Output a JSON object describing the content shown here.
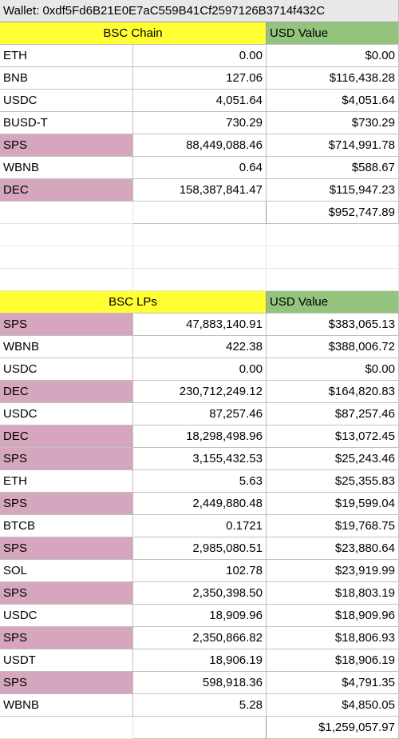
{
  "wallet": "Wallet: 0xdf5Fd6B21E0E7aC559B41Cf2597126B3714f432C",
  "bsc_chain": {
    "header": "BSC Chain",
    "usd_header": "USD Value",
    "rows": [
      {
        "token": "ETH",
        "amount": "0.00",
        "usd": "$0.00",
        "highlight": false
      },
      {
        "token": "BNB",
        "amount": "127.06",
        "usd": "$116,438.28",
        "highlight": false
      },
      {
        "token": "USDC",
        "amount": "4,051.64",
        "usd": "$4,051.64",
        "highlight": false
      },
      {
        "token": "BUSD-T",
        "amount": "730.29",
        "usd": "$730.29",
        "highlight": false
      },
      {
        "token": "SPS",
        "amount": "88,449,088.46",
        "usd": "$714,991.78",
        "highlight": true
      },
      {
        "token": "WBNB",
        "amount": "0.64",
        "usd": "$588.67",
        "highlight": false
      },
      {
        "token": "DEC",
        "amount": "158,387,841.47",
        "usd": "$115,947.23",
        "highlight": true
      }
    ],
    "total": "$952,747.89"
  },
  "bsc_lps": {
    "header": "BSC LPs",
    "usd_header": "USD Value",
    "rows": [
      {
        "token": "SPS",
        "amount": "47,883,140.91",
        "usd": "$383,065.13",
        "highlight": true
      },
      {
        "token": "WBNB",
        "amount": "422.38",
        "usd": "$388,006.72",
        "highlight": false
      },
      {
        "token": "USDC",
        "amount": "0.00",
        "usd": "$0.00",
        "highlight": false
      },
      {
        "token": "DEC",
        "amount": "230,712,249.12",
        "usd": "$164,820.83",
        "highlight": true
      },
      {
        "token": "USDC",
        "amount": "87,257.46",
        "usd": "$87,257.46",
        "highlight": false
      },
      {
        "token": "DEC",
        "amount": "18,298,498.96",
        "usd": "$13,072.45",
        "highlight": true
      },
      {
        "token": "SPS",
        "amount": "3,155,432.53",
        "usd": "$25,243.46",
        "highlight": true
      },
      {
        "token": "ETH",
        "amount": "5.63",
        "usd": "$25,355.83",
        "highlight": false
      },
      {
        "token": "SPS",
        "amount": "2,449,880.48",
        "usd": "$19,599.04",
        "highlight": true
      },
      {
        "token": "BTCB",
        "amount": "0.1721",
        "usd": "$19,768.75",
        "highlight": false
      },
      {
        "token": "SPS",
        "amount": "2,985,080.51",
        "usd": "$23,880.64",
        "highlight": true
      },
      {
        "token": "SOL",
        "amount": "102.78",
        "usd": "$23,919.99",
        "highlight": false
      },
      {
        "token": "SPS",
        "amount": "2,350,398.50",
        "usd": "$18,803.19",
        "highlight": true
      },
      {
        "token": "USDC",
        "amount": "18,909.96",
        "usd": "$18,909.96",
        "highlight": false
      },
      {
        "token": "SPS",
        "amount": "2,350,866.82",
        "usd": "$18,806.93",
        "highlight": true
      },
      {
        "token": "USDT",
        "amount": "18,906.19",
        "usd": "$18,906.19",
        "highlight": false
      },
      {
        "token": "SPS",
        "amount": "598,918.36",
        "usd": "$4,791.35",
        "highlight": true
      },
      {
        "token": "WBNB",
        "amount": "5.28",
        "usd": "$4,850.05",
        "highlight": false
      }
    ],
    "total": "$1,259,057.97"
  },
  "colors": {
    "header_yellow": "#ffff33",
    "header_green": "#93c47d",
    "highlight_pink": "#d5a6bd"
  }
}
